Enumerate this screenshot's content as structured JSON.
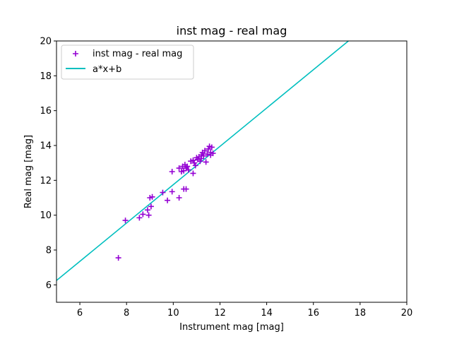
{
  "chart_data": {
    "type": "scatter",
    "title": "inst mag - real mag",
    "xlabel": "Instrument mag [mag]",
    "ylabel": "Real mag [mag]",
    "xlim": [
      5,
      20
    ],
    "ylim": [
      5,
      20
    ],
    "xticks": [
      6,
      8,
      10,
      12,
      14,
      16,
      18,
      20
    ],
    "yticks": [
      6,
      8,
      10,
      12,
      14,
      16,
      18,
      20
    ],
    "grid": false,
    "legend_position": "top-left",
    "colors": {
      "points": "#9400D3",
      "fit_line": "#00BFBF",
      "axes": "#000000"
    },
    "series": [
      {
        "name": "inst mag - real mag",
        "kind": "scatter",
        "marker": "+",
        "points": [
          [
            7.65,
            7.55
          ],
          [
            7.95,
            9.7
          ],
          [
            8.55,
            9.85
          ],
          [
            8.7,
            10.05
          ],
          [
            8.9,
            10.3
          ],
          [
            8.95,
            10.0
          ],
          [
            9.0,
            11.0
          ],
          [
            9.05,
            10.5
          ],
          [
            9.1,
            11.05
          ],
          [
            9.55,
            11.3
          ],
          [
            9.75,
            10.85
          ],
          [
            9.95,
            12.5
          ],
          [
            9.95,
            11.35
          ],
          [
            10.25,
            11.0
          ],
          [
            10.25,
            12.7
          ],
          [
            10.35,
            12.5
          ],
          [
            10.4,
            12.8
          ],
          [
            10.45,
            12.55
          ],
          [
            10.45,
            11.5
          ],
          [
            10.5,
            12.9
          ],
          [
            10.55,
            12.7
          ],
          [
            10.55,
            11.5
          ],
          [
            10.6,
            12.8
          ],
          [
            10.65,
            12.6
          ],
          [
            10.75,
            13.1
          ],
          [
            10.85,
            13.15
          ],
          [
            10.85,
            12.4
          ],
          [
            10.9,
            13.0
          ],
          [
            10.95,
            12.85
          ],
          [
            11.0,
            13.3
          ],
          [
            11.05,
            13.2
          ],
          [
            11.1,
            13.35
          ],
          [
            11.15,
            13.1
          ],
          [
            11.2,
            13.45
          ],
          [
            11.2,
            13.25
          ],
          [
            11.25,
            13.6
          ],
          [
            11.3,
            13.4
          ],
          [
            11.35,
            13.7
          ],
          [
            11.4,
            13.05
          ],
          [
            11.45,
            13.5
          ],
          [
            11.5,
            13.8
          ],
          [
            11.55,
            13.95
          ],
          [
            11.6,
            13.6
          ],
          [
            11.6,
            13.45
          ],
          [
            11.65,
            13.9
          ],
          [
            11.7,
            13.55
          ]
        ]
      },
      {
        "name": "a*x+b",
        "kind": "line",
        "points": [
          [
            5,
            6.25
          ],
          [
            17.5,
            20.0
          ]
        ]
      }
    ]
  }
}
